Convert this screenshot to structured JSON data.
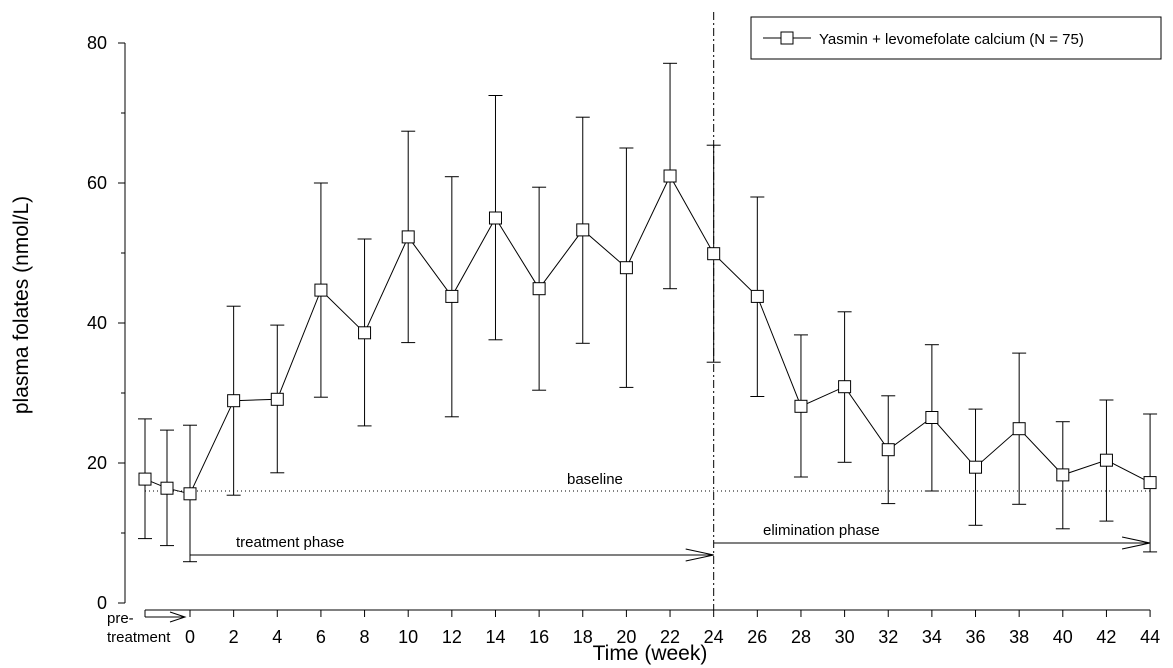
{
  "chart_data": {
    "type": "line",
    "xlabel": "Time (week)",
    "ylabel": "plasma folates (nmol/L)",
    "xlim": [
      0,
      44
    ],
    "ylim": [
      0,
      80
    ],
    "x_ticks": [
      "0",
      "2",
      "4",
      "6",
      "8",
      "10",
      "12",
      "14",
      "16",
      "18",
      "20",
      "22",
      "24",
      "26",
      "28",
      "30",
      "32",
      "34",
      "36",
      "38",
      "40",
      "42",
      "44"
    ],
    "y_ticks": [
      "0",
      "20",
      "40",
      "60",
      "80"
    ],
    "pretreatment_label_line1": "pre-",
    "pretreatment_label_line2": "treatment",
    "legend": {
      "position": "top-right",
      "entry": "Yasmin + levomefolate calcium (N = 75)"
    },
    "baseline": {
      "value": 16,
      "label": "baseline"
    },
    "phase_boundary_x": 24,
    "phases": [
      {
        "label": "treatment phase",
        "from": 0,
        "to": 24
      },
      {
        "label": "elimination phase",
        "from": 24,
        "to": 44
      }
    ],
    "series": [
      {
        "name": "Yasmin + levomefolate calcium (N = 75)",
        "points": [
          {
            "x": -2,
            "y": 17.7,
            "low": 9.2,
            "high": 26.3
          },
          {
            "x": -1,
            "y": 16.4,
            "low": 8.2,
            "high": 24.7
          },
          {
            "x": 0,
            "y": 15.6,
            "low": 5.9,
            "high": 25.4
          },
          {
            "x": 2,
            "y": 28.9,
            "low": 15.4,
            "high": 42.4
          },
          {
            "x": 4,
            "y": 29.1,
            "low": 18.6,
            "high": 39.7
          },
          {
            "x": 6,
            "y": 44.7,
            "low": 29.4,
            "high": 60.0
          },
          {
            "x": 8,
            "y": 38.6,
            "low": 25.3,
            "high": 52.0
          },
          {
            "x": 10,
            "y": 52.3,
            "low": 37.2,
            "high": 67.4
          },
          {
            "x": 12,
            "y": 43.8,
            "low": 26.6,
            "high": 60.9
          },
          {
            "x": 14,
            "y": 55.0,
            "low": 37.6,
            "high": 72.5
          },
          {
            "x": 16,
            "y": 44.9,
            "low": 30.4,
            "high": 59.4
          },
          {
            "x": 18,
            "y": 53.3,
            "low": 37.1,
            "high": 69.4
          },
          {
            "x": 20,
            "y": 47.9,
            "low": 30.8,
            "high": 65.0
          },
          {
            "x": 22,
            "y": 61.0,
            "low": 44.9,
            "high": 77.1
          },
          {
            "x": 24,
            "y": 49.9,
            "low": 34.4,
            "high": 65.4
          },
          {
            "x": 26,
            "y": 43.8,
            "low": 29.5,
            "high": 58.0
          },
          {
            "x": 28,
            "y": 28.1,
            "low": 18.0,
            "high": 38.3
          },
          {
            "x": 30,
            "y": 30.9,
            "low": 20.1,
            "high": 41.6
          },
          {
            "x": 32,
            "y": 21.9,
            "low": 14.2,
            "high": 29.6
          },
          {
            "x": 34,
            "y": 26.5,
            "low": 16.0,
            "high": 36.9
          },
          {
            "x": 36,
            "y": 19.4,
            "low": 11.1,
            "high": 27.7
          },
          {
            "x": 38,
            "y": 24.9,
            "low": 14.1,
            "high": 35.7
          },
          {
            "x": 40,
            "y": 18.3,
            "low": 10.6,
            "high": 25.9
          },
          {
            "x": 42,
            "y": 20.4,
            "low": 11.7,
            "high": 29.0
          },
          {
            "x": 44,
            "y": 17.2,
            "low": 7.3,
            "high": 27.0
          }
        ]
      }
    ]
  }
}
